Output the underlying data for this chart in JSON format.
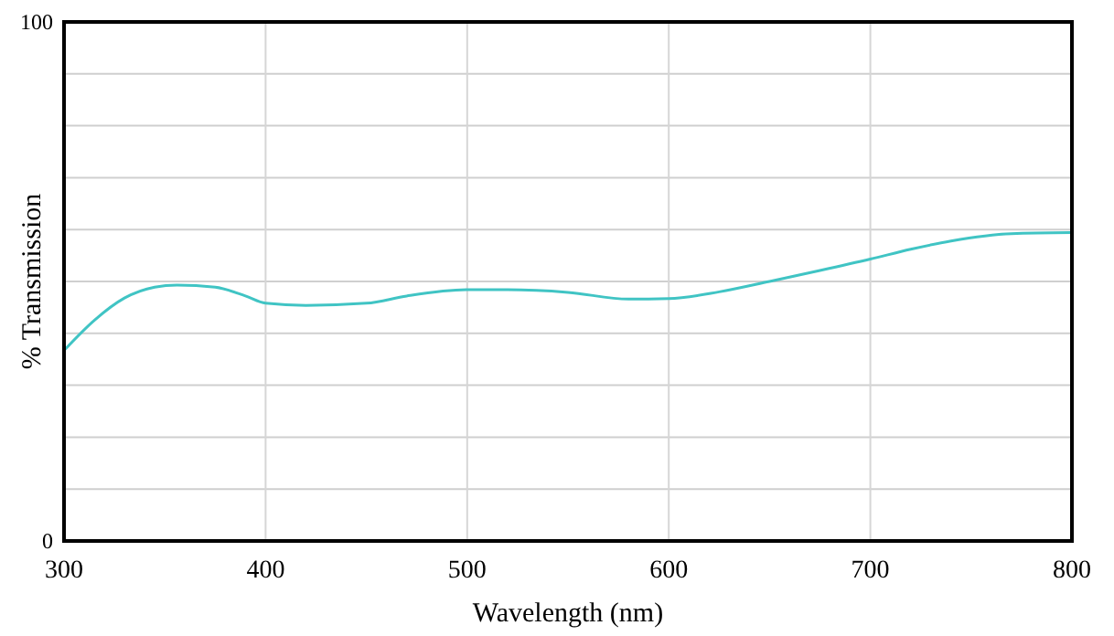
{
  "chart_data": {
    "type": "line",
    "xlabel": "Wavelength (nm)",
    "ylabel": "% Transmission",
    "xlim": [
      300,
      800
    ],
    "xticks": [
      300,
      400,
      500,
      600,
      700,
      800
    ],
    "ylim": [
      0,
      100
    ],
    "yticks": [
      0,
      {
        "value": 10,
        "label": null
      },
      {
        "value": 20,
        "label": null
      },
      {
        "value": 30,
        "label": null
      },
      {
        "value": 40,
        "label": null
      },
      {
        "value": 50,
        "label": null
      },
      {
        "value": 60,
        "label": null
      },
      {
        "value": 70,
        "label": null
      },
      {
        "value": 80,
        "label": null
      },
      {
        "value": 90,
        "label": null
      },
      100
    ],
    "grid": true,
    "marker": "none",
    "line_style": "solid",
    "series": [
      {
        "color": "#40c4c4",
        "x": [
          300,
          315,
          330,
          345,
          356,
          375,
          390,
          400,
          420,
          450,
          470,
          500,
          520,
          550,
          580,
          600,
          625,
          650,
          675,
          700,
          720,
          740,
          770,
          800
        ],
        "values": [
          36.7,
          42.5,
          46.8,
          48.9,
          49.3,
          48.9,
          47.2,
          45.8,
          45.4,
          45.8,
          47.2,
          48.4,
          48.4,
          47.9,
          46.6,
          46.7,
          48,
          50.0,
          52.1,
          54.3,
          56.2,
          57.8,
          59.2,
          59.4
        ]
      }
    ]
  }
}
